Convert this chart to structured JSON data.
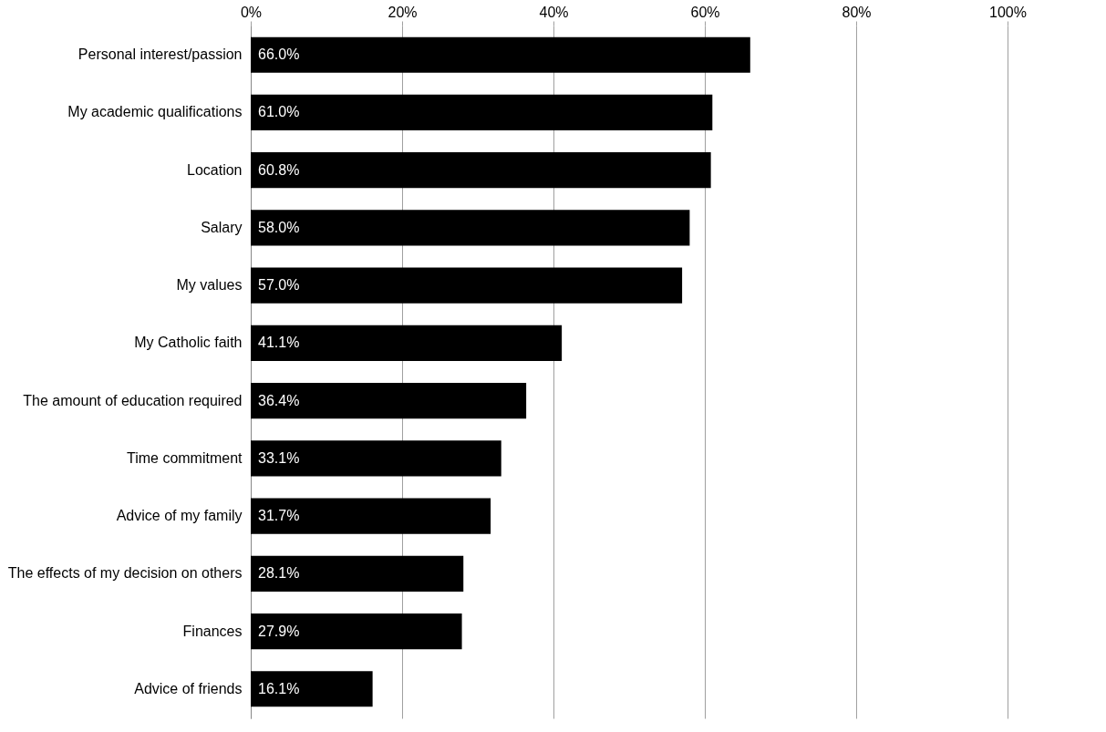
{
  "chart_data": {
    "type": "bar",
    "orientation": "horizontal",
    "categories": [
      "Personal interest/passion",
      "My academic qualifications",
      "Location",
      "Salary",
      "My values",
      "My Catholic faith",
      "The amount of education required",
      "Time commitment",
      "Advice of my family",
      "The effects of my decision on others",
      "Finances",
      "Advice of friends"
    ],
    "values": [
      66.0,
      61.0,
      60.8,
      58.0,
      57.0,
      41.1,
      36.4,
      33.1,
      31.7,
      28.1,
      27.9,
      16.1
    ],
    "value_labels": [
      "66.0%",
      "61.0%",
      "60.8%",
      "58.0%",
      "57.0%",
      "41.1%",
      "36.4%",
      "33.1%",
      "31.7%",
      "28.1%",
      "27.9%",
      "16.1%"
    ],
    "color": "#000000",
    "xlim": [
      0,
      100
    ],
    "xticks": [
      {
        "value": 0,
        "label": "0%"
      },
      {
        "value": 20,
        "label": "20%"
      },
      {
        "value": 40,
        "label": "40%"
      },
      {
        "value": 60,
        "label": "60%"
      },
      {
        "value": 80,
        "label": "80%"
      },
      {
        "value": 100,
        "label": "100%"
      }
    ],
    "grid": "x"
  }
}
